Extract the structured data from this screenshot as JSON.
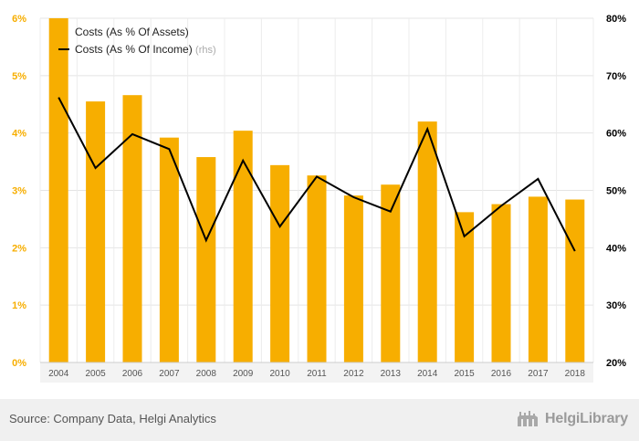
{
  "chart_data": {
    "type": "bar",
    "categories": [
      "2004",
      "2005",
      "2006",
      "2007",
      "2008",
      "2009",
      "2010",
      "2011",
      "2012",
      "2013",
      "2014",
      "2015",
      "2016",
      "2017",
      "2018"
    ],
    "series": [
      {
        "name": "Costs (As % Of Assets)",
        "type": "bar",
        "axis": "left",
        "color": "#f7ae00",
        "values": [
          6.0,
          4.55,
          4.66,
          3.92,
          3.58,
          4.04,
          3.44,
          3.26,
          2.91,
          3.1,
          4.2,
          2.62,
          2.76,
          2.89,
          2.84
        ]
      },
      {
        "name": "Costs (As % Of Income)",
        "type": "line",
        "axis": "right",
        "color": "#000000",
        "values": [
          66.2,
          53.9,
          59.8,
          57.2,
          41.3,
          55.2,
          43.7,
          52.4,
          48.8,
          46.3,
          60.7,
          42.0,
          47.3,
          52.0,
          39.4
        ]
      }
    ],
    "legend": [
      {
        "label": "Costs (As % Of Assets)",
        "suffix": ""
      },
      {
        "label": "Costs (As % Of Income)",
        "suffix": "(rhs)"
      }
    ],
    "legend_position": "top-left",
    "y_left": {
      "min": 0,
      "max": 6,
      "ticks": [
        0,
        1,
        2,
        3,
        4,
        5,
        6
      ],
      "tick_labels": [
        "0%",
        "1%",
        "2%",
        "3%",
        "4%",
        "5%",
        "6%"
      ],
      "color": "#f7ae00"
    },
    "y_right": {
      "min": 20,
      "max": 80,
      "ticks": [
        20,
        30,
        40,
        50,
        60,
        70,
        80
      ],
      "tick_labels": [
        "20%",
        "30%",
        "40%",
        "50%",
        "60%",
        "70%",
        "80%"
      ],
      "color": "#000000"
    },
    "grid": true,
    "title": "",
    "xlabel": "",
    "ylabel": ""
  },
  "footer": {
    "source": "Source: Company Data, Helgi Analytics",
    "logo_text": "HelgiLibrary"
  }
}
